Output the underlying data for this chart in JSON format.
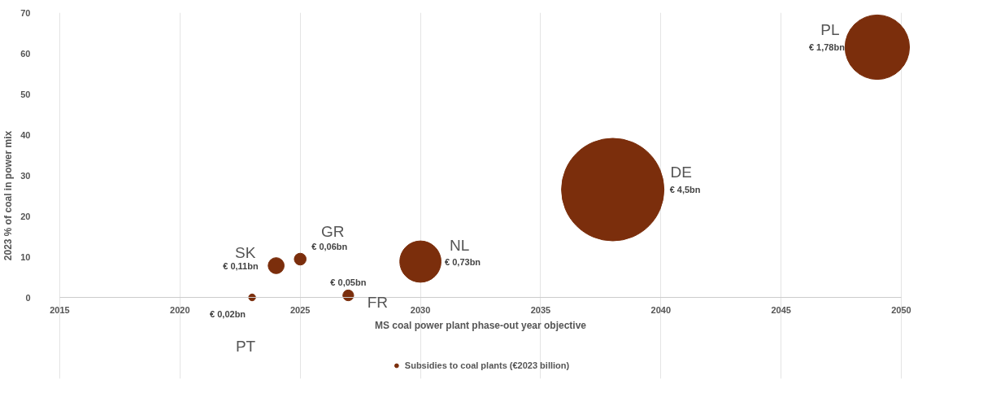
{
  "chart_data": {
    "type": "bubble",
    "xlabel": "MS coal power plant phase-out year objective",
    "ylabel": "2023 % of coal in power mix",
    "x": [
      2023,
      2024,
      2025,
      2027,
      2030,
      2038,
      2049
    ],
    "series": [
      {
        "name": "Subsidies to coal plants (€2023 billion)",
        "color": "#7b2e0c",
        "values": [
          0,
          7.8,
          9.4,
          0.5,
          8.8,
          26.5,
          61.5
        ],
        "sizes": [
          0.02,
          0.11,
          0.06,
          0.05,
          0.73,
          4.5,
          1.78
        ],
        "value_labels": [
          "€ 0,02bn",
          "€ 0,11bn",
          "€ 0,06bn",
          "€ 0,05bn",
          "€ 0,73bn",
          "€ 4,5bn",
          "€ 1,78bn"
        ]
      }
    ],
    "annotations": [
      {
        "text": "PT",
        "x": 2023,
        "y": 0
      },
      {
        "text": "SK",
        "x": 2024,
        "y": 7.8
      },
      {
        "text": "GR",
        "x": 2025,
        "y": 9.4
      },
      {
        "text": "FR",
        "x": 2027,
        "y": 0.5
      },
      {
        "text": "NL",
        "x": 2030,
        "y": 8.8
      },
      "DE",
      {
        "text": "PL",
        "x": 2049,
        "y": 61.5
      }
    ],
    "xlim": [
      2015,
      2050
    ],
    "xticks": [
      2015,
      2020,
      2025,
      2030,
      2035,
      2040,
      2045,
      2050
    ],
    "ylim": [
      0,
      70
    ],
    "yticks": [
      0,
      10,
      20,
      30,
      40,
      50,
      60,
      70
    ],
    "grid": "x",
    "legend": "bottom",
    "marker": "circle"
  }
}
